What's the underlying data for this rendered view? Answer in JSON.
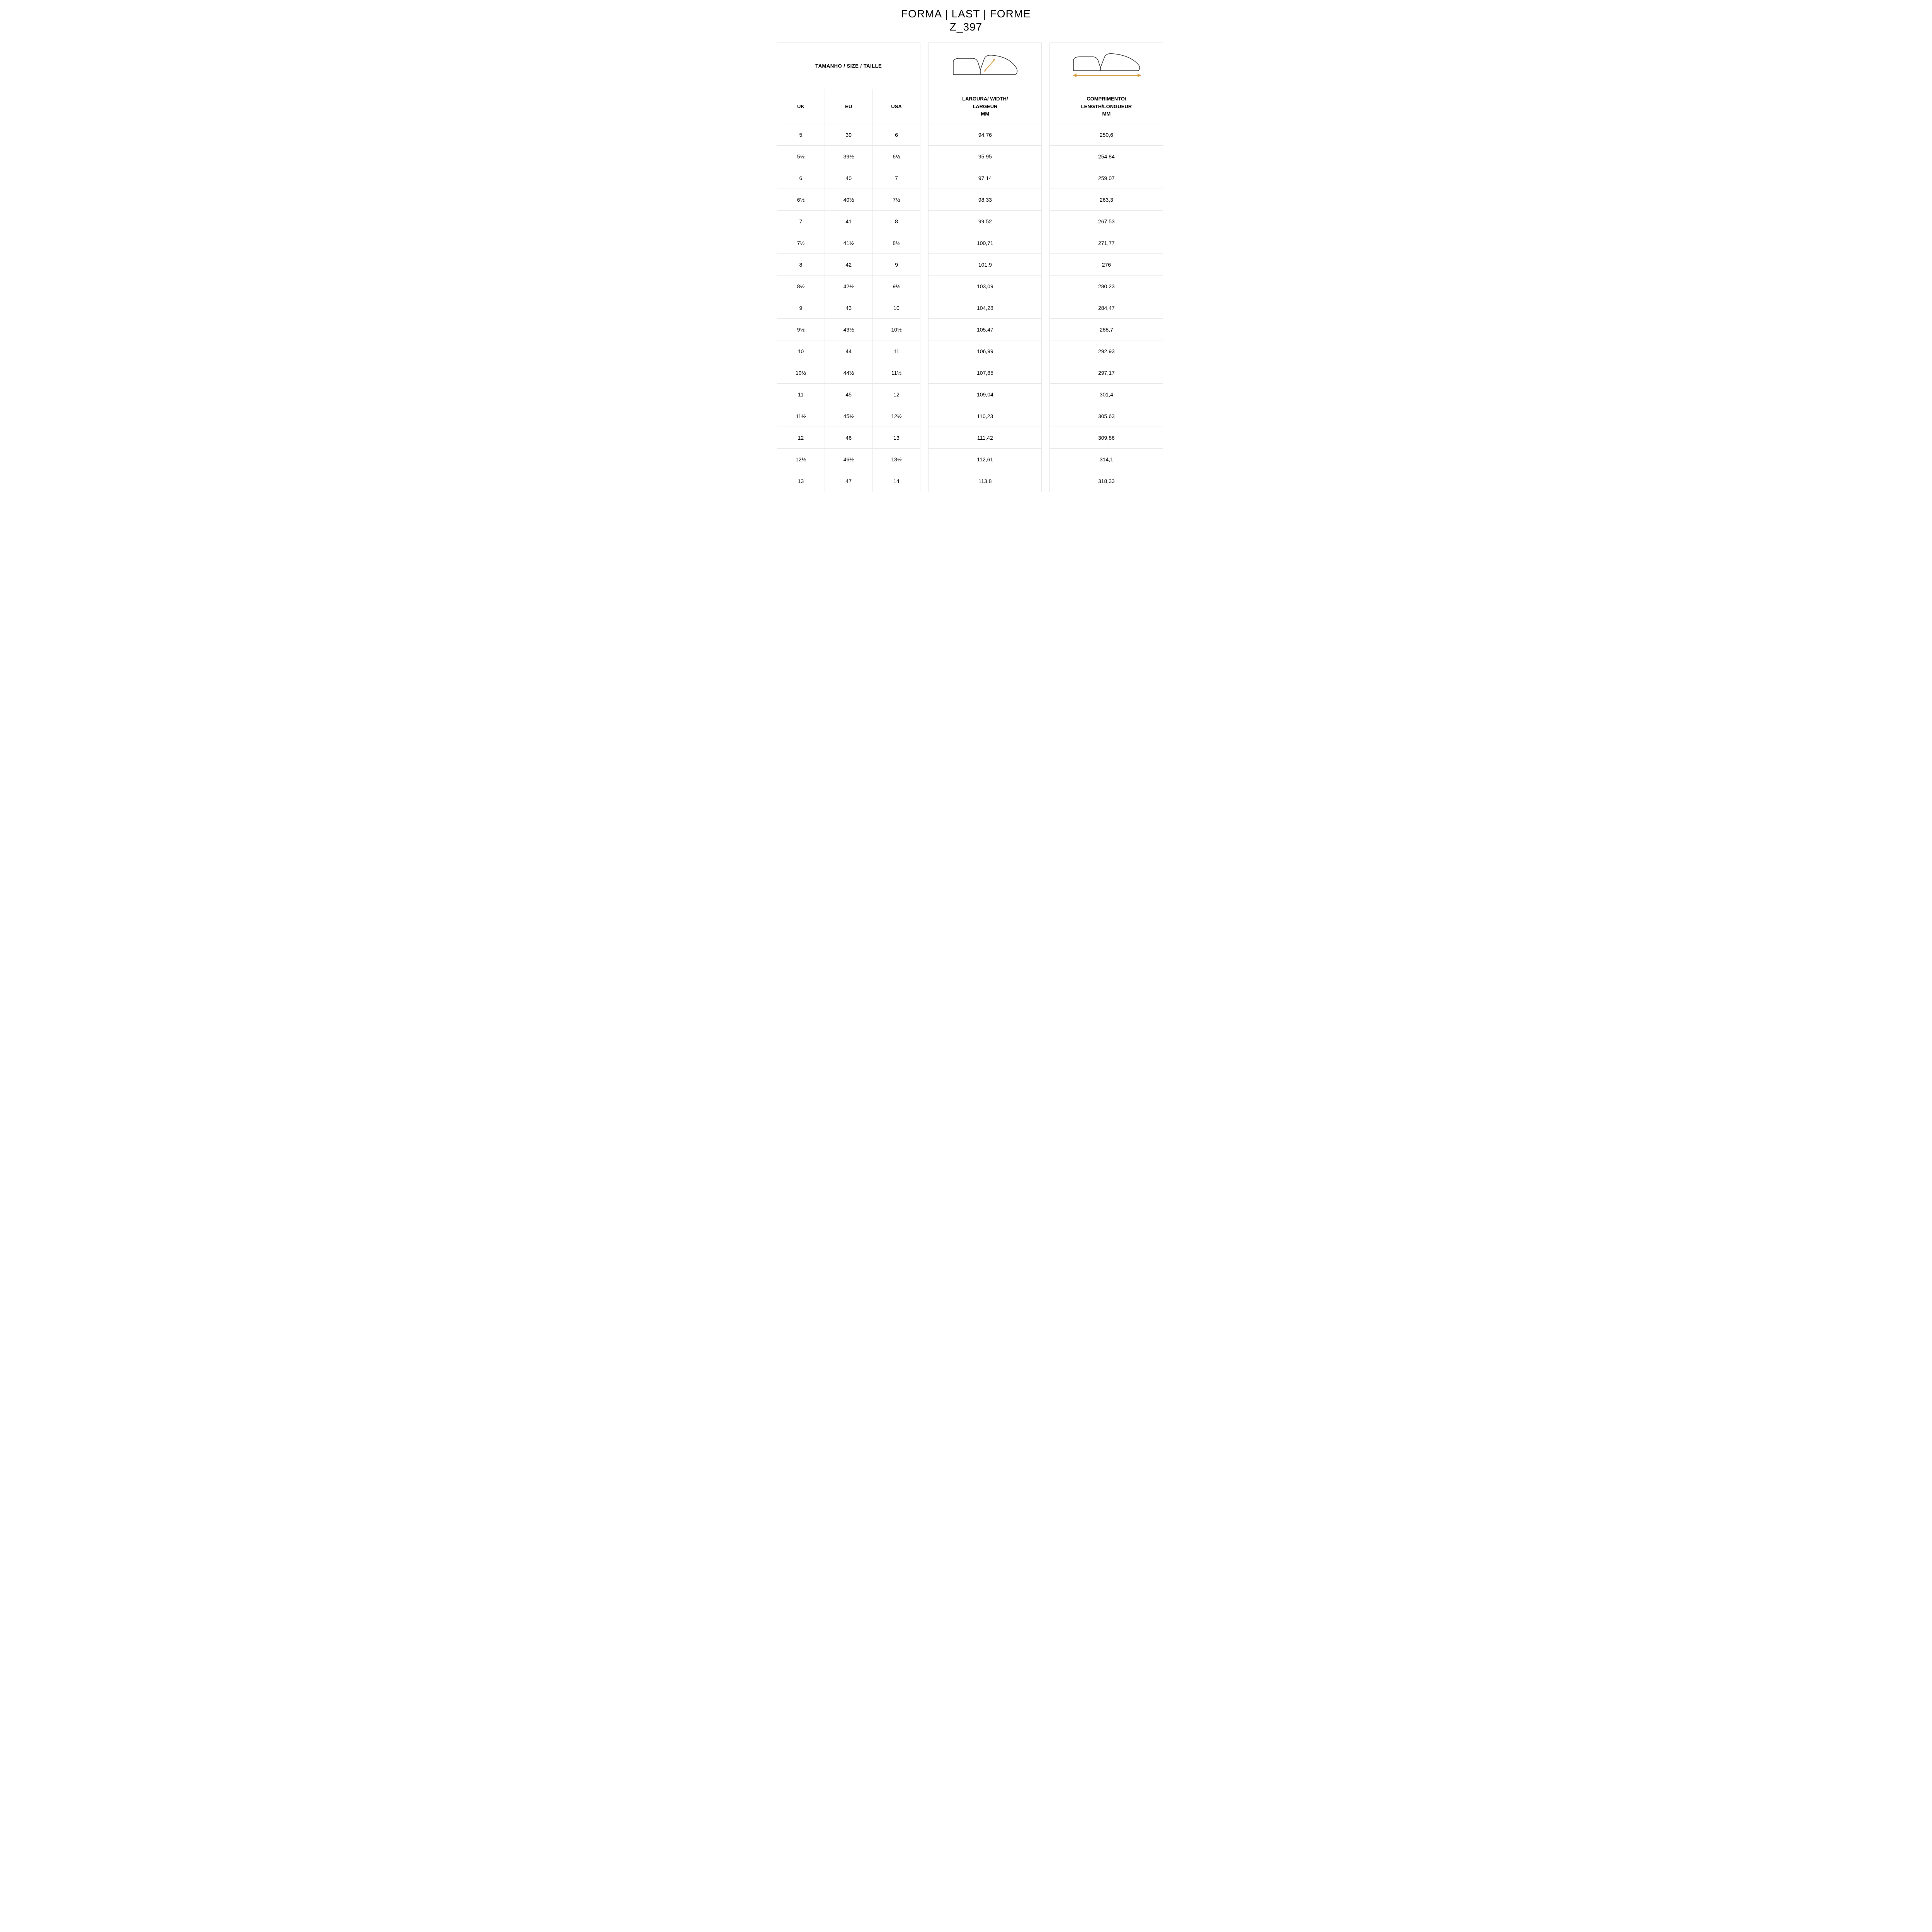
{
  "title": "FORMA | LAST | FORME",
  "subtitle": "Z_397",
  "colors": {
    "border": "#e7e7e7",
    "text": "#000000",
    "background": "#ffffff",
    "arrow": "#d6a04c",
    "shoe_stroke": "#333333"
  },
  "size_header": "TAMANHO / SIZE / TAILLE",
  "size_columns": [
    "UK",
    "EU",
    "USA"
  ],
  "width_header": "LARGURA/ WIDTH/\nLARGEUR\nMM",
  "length_header": "COMPRIMENTO/\nLENGTH/LONGUEUR\nMM",
  "rows": [
    {
      "uk": "5",
      "eu": "39",
      "usa": "6",
      "width": "94,76",
      "length": "250,6"
    },
    {
      "uk": "5½",
      "eu": "39½",
      "usa": "6½",
      "width": "95,95",
      "length": "254,84"
    },
    {
      "uk": "6",
      "eu": "40",
      "usa": "7",
      "width": "97,14",
      "length": "259,07"
    },
    {
      "uk": "6½",
      "eu": "40½",
      "usa": "7½",
      "width": "98,33",
      "length": "263,3"
    },
    {
      "uk": "7",
      "eu": "41",
      "usa": "8",
      "width": "99,52",
      "length": "267,53"
    },
    {
      "uk": "7½",
      "eu": "41½",
      "usa": "8½",
      "width": "100,71",
      "length": "271,77"
    },
    {
      "uk": "8",
      "eu": "42",
      "usa": "9",
      "width": "101,9",
      "length": "276"
    },
    {
      "uk": "8½",
      "eu": "42½",
      "usa": "9½",
      "width": "103,09",
      "length": "280,23"
    },
    {
      "uk": "9",
      "eu": "43",
      "usa": "10",
      "width": "104,28",
      "length": "284,47"
    },
    {
      "uk": "9½",
      "eu": "43½",
      "usa": "10½",
      "width": "105,47",
      "length": "288,7"
    },
    {
      "uk": "10",
      "eu": "44",
      "usa": "11",
      "width": "106,99",
      "length": "292,93"
    },
    {
      "uk": "10½",
      "eu": "44½",
      "usa": "11½",
      "width": "107,85",
      "length": "297,17"
    },
    {
      "uk": "11",
      "eu": "45",
      "usa": "12",
      "width": "109,04",
      "length": "301,4"
    },
    {
      "uk": "11½",
      "eu": "45½",
      "usa": "12½",
      "width": "110,23",
      "length": "305,63"
    },
    {
      "uk": "12",
      "eu": "46",
      "usa": "13",
      "width": "111,42",
      "length": "309,86"
    },
    {
      "uk": "12½",
      "eu": "46½",
      "usa": "13½",
      "width": "112,61",
      "length": "314,1"
    },
    {
      "uk": "13",
      "eu": "47",
      "usa": "14",
      "width": "113,8",
      "length": "318,33"
    }
  ],
  "width_icon": {
    "type": "shoe-last-width-diagram",
    "stroke_color": "#333333",
    "arrow_color": "#d6a04c",
    "stroke_width": 1.5,
    "arrow_width": 2
  },
  "length_icon": {
    "type": "shoe-last-length-diagram",
    "stroke_color": "#333333",
    "arrow_color": "#d6a04c",
    "stroke_width": 1.5,
    "arrow_width": 2
  }
}
